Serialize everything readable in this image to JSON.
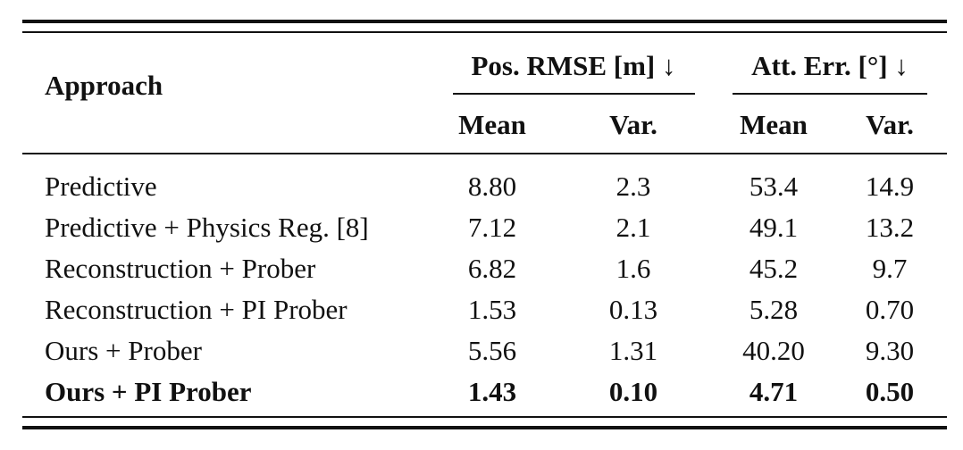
{
  "table": {
    "header": {
      "approach": "Approach",
      "group1": "Pos. RMSE [m] ↓",
      "group2": "Att. Err. [°] ↓",
      "sub": [
        "Mean",
        "Var.",
        "Mean",
        "Var."
      ]
    },
    "rows": [
      {
        "approach": "Predictive",
        "values": [
          "8.80",
          "2.3",
          "53.4",
          "14.9"
        ],
        "bold": false
      },
      {
        "approach": "Predictive + Physics Reg. [8]",
        "values": [
          "7.12",
          "2.1",
          "49.1",
          "13.2"
        ],
        "bold": false
      },
      {
        "approach": "Reconstruction + Prober",
        "values": [
          "6.82",
          "1.6",
          "45.2",
          "9.7"
        ],
        "bold": false
      },
      {
        "approach": "Reconstruction + PI Prober",
        "values": [
          "1.53",
          "0.13",
          "5.28",
          "0.70"
        ],
        "bold": false
      },
      {
        "approach": "Ours + Prober",
        "values": [
          "5.56",
          "1.31",
          "40.20",
          "9.30"
        ],
        "bold": false
      },
      {
        "approach": "Ours + PI Prober",
        "values": [
          "1.43",
          "0.10",
          "4.71",
          "0.50"
        ],
        "bold": true
      }
    ]
  }
}
